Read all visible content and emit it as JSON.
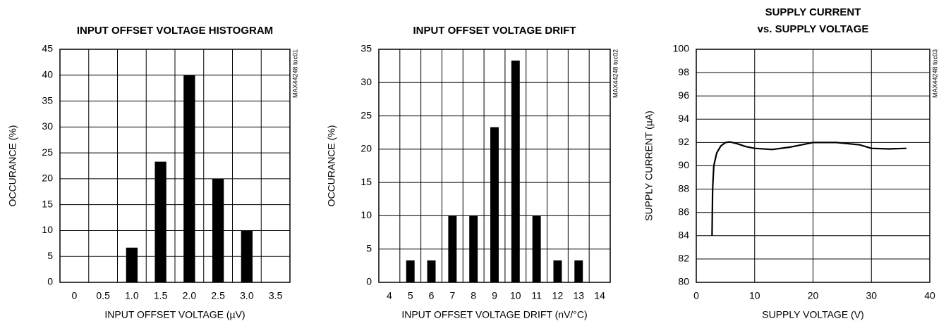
{
  "chart_data": [
    {
      "type": "bar",
      "title": "INPUT OFFSET VOLTAGE HISTOGRAM",
      "note": "MAX44248 toc01",
      "xlabel": "INPUT OFFSET VOLTAGE (µV)",
      "ylabel": "OCCURANCE (%)",
      "categories": [
        "0",
        "0.5",
        "1.0",
        "1.5",
        "2.0",
        "2.5",
        "3.0",
        "3.5"
      ],
      "values": [
        null,
        null,
        6.7,
        23.3,
        40,
        20,
        10,
        null
      ],
      "color": "#000000",
      "ylim": [
        0,
        45
      ],
      "yticks": [
        0,
        5,
        10,
        15,
        20,
        25,
        30,
        35,
        40,
        45
      ],
      "grid": true
    },
    {
      "type": "bar",
      "title": "INPUT OFFSET VOLTAGE DRIFT",
      "note": "MAX44248 toc02",
      "xlabel": "INPUT OFFSET VOLTAGE DRIFT (nV/°C)",
      "ylabel": "OCCURANCE (%)",
      "categories": [
        "4",
        "5",
        "6",
        "7",
        "8",
        "9",
        "10",
        "11",
        "12",
        "13",
        "14"
      ],
      "values": [
        null,
        3.3,
        3.3,
        10,
        10,
        23.3,
        33.3,
        10,
        3.3,
        3.3,
        null
      ],
      "color": "#000000",
      "ylim": [
        0,
        35
      ],
      "yticks": [
        0,
        5,
        10,
        15,
        20,
        25,
        30,
        35
      ],
      "grid": true
    },
    {
      "type": "line",
      "title": "SUPPLY CURRENT",
      "subtitle": "vs. SUPPLY VOLTAGE",
      "note": "MAX44248 toc03",
      "xlabel": "SUPPLY VOLTAGE (V)",
      "ylabel": "SUPPLY CURRENT (µA)",
      "x": [
        2.7,
        2.8,
        3.0,
        3.5,
        4.2,
        5.0,
        5.8,
        7.0,
        8.5,
        10,
        13,
        16,
        20,
        24,
        28,
        30,
        33,
        36
      ],
      "values": [
        84,
        88,
        90,
        91.1,
        91.7,
        92,
        92.05,
        91.9,
        91.65,
        91.5,
        91.4,
        91.6,
        92,
        92,
        91.8,
        91.5,
        91.45,
        91.5
      ],
      "color": "#000000",
      "xlim": [
        0,
        40
      ],
      "xticks": [
        0,
        10,
        20,
        30,
        40
      ],
      "ylim": [
        80,
        100
      ],
      "yticks": [
        80,
        82,
        84,
        86,
        88,
        90,
        92,
        94,
        96,
        98,
        100
      ],
      "grid": true
    }
  ]
}
